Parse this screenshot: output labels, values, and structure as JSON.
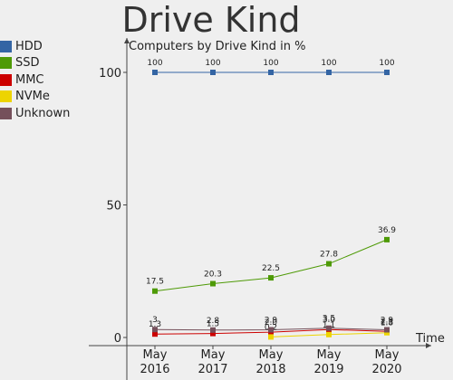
{
  "page": {
    "title": "Drive Kind"
  },
  "chart_data": {
    "type": "line",
    "title": "Computers by Drive Kind in %",
    "xlabel": "Time",
    "ylabel": "",
    "categories": [
      "May 2016",
      "May 2017",
      "May 2018",
      "May 2019",
      "May 2020"
    ],
    "yticks": [
      0,
      50,
      100
    ],
    "ylim": [
      0,
      115
    ],
    "legend_position": "left",
    "grid": false,
    "series": [
      {
        "name": "HDD",
        "color": "#3465a4",
        "values": [
          100,
          100,
          100,
          100,
          100
        ],
        "labels": [
          "100",
          "100",
          "100",
          "100",
          "100"
        ]
      },
      {
        "name": "SSD",
        "color": "#4e9a06",
        "values": [
          17.5,
          20.3,
          22.5,
          27.8,
          36.9
        ],
        "labels": [
          "17.5",
          "20.3",
          "22.5",
          "27.8",
          "36.9"
        ]
      },
      {
        "name": "MMC",
        "color": "#cc0000",
        "values": [
          1.3,
          1.5,
          2.0,
          3.0,
          2.3
        ],
        "labels": [
          "1.3",
          "1.5",
          "2.0",
          "3.0",
          "2.3"
        ]
      },
      {
        "name": "NVMe",
        "color": "#edd400",
        "values": [
          null,
          null,
          0.2,
          1.1,
          1.8
        ],
        "labels": [
          "",
          "",
          "0.2",
          "1.1",
          "1.8"
        ]
      },
      {
        "name": "Unknown",
        "color": "#75505b",
        "values": [
          3,
          2.8,
          2.9,
          3.5,
          2.9
        ],
        "labels": [
          "3",
          "2.8",
          "2.9",
          "3.5",
          "2.9"
        ]
      }
    ]
  }
}
